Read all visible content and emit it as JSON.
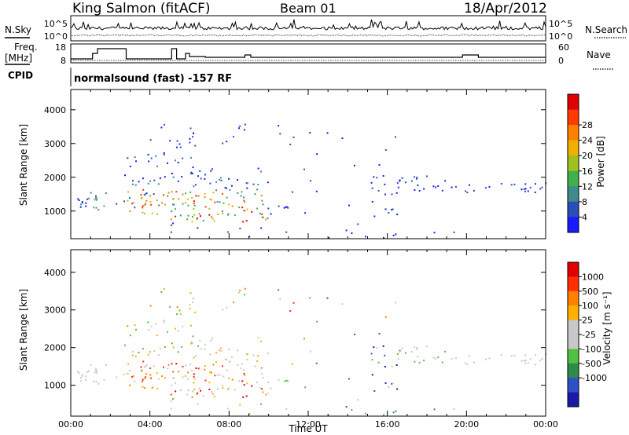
{
  "header": {
    "station": "King Salmon (fitACF)",
    "beam": "Beam 01",
    "date": "18/Apr/2012"
  },
  "panels": {
    "nsky_label": "N.Sky",
    "nsky_ticks": [
      "10^5",
      "10^0"
    ],
    "nsearch_label": "N.Search",
    "nsearch_ticks": [
      "10^5",
      "10^0"
    ],
    "freq_label_1": "Freq.",
    "freq_label_2": "[MHz]",
    "freq_ticks": [
      "18",
      "8"
    ],
    "nave_label": "Nave",
    "nave_ticks": [
      "60",
      "0"
    ],
    "cpid_label": "CPID",
    "cpid_text": "normalsound (fast) -157 RF"
  },
  "chart_data": [
    {
      "type": "heatmap",
      "name": "power",
      "ylabel": "Slant Range [km]",
      "xlabel": "",
      "yticks": [
        "1000",
        "2000",
        "3000",
        "4000"
      ],
      "xlim_hours": [
        0,
        24
      ],
      "ylim_km": [
        180,
        4600
      ],
      "colorbar": {
        "label": "Power [dB]",
        "ticks": [
          "4",
          "8",
          "12",
          "16",
          "20",
          "24",
          "28"
        ],
        "colors": [
          "#1a1aff",
          "#2b4db8",
          "#3f8a8a",
          "#40b04a",
          "#a0c020",
          "#f0b000",
          "#ff8000",
          "#ff3a00",
          "#e00000"
        ]
      }
    },
    {
      "type": "heatmap",
      "name": "velocity",
      "ylabel": "Slant Range [km]",
      "xlabel": "Time UT",
      "xticks": [
        "00:00",
        "04:00",
        "08:00",
        "12:00",
        "16:00",
        "20:00",
        "00:00"
      ],
      "yticks": [
        "1000",
        "2000",
        "3000",
        "4000"
      ],
      "xlim_hours": [
        0,
        24
      ],
      "ylim_km": [
        180,
        4600
      ],
      "colorbar": {
        "label": "Velocity [m s⁻¹]",
        "ticks": [
          "1000",
          "500",
          "100",
          "25",
          "-25",
          "-100",
          "-500",
          "-1000"
        ],
        "colors": [
          "#1a1aa8",
          "#3050c8",
          "#2e8a4a",
          "#50c040",
          "#c8c8c8",
          "#c8c8c8",
          "#ffb000",
          "#ff8000",
          "#ff3000",
          "#e00000"
        ]
      }
    }
  ]
}
